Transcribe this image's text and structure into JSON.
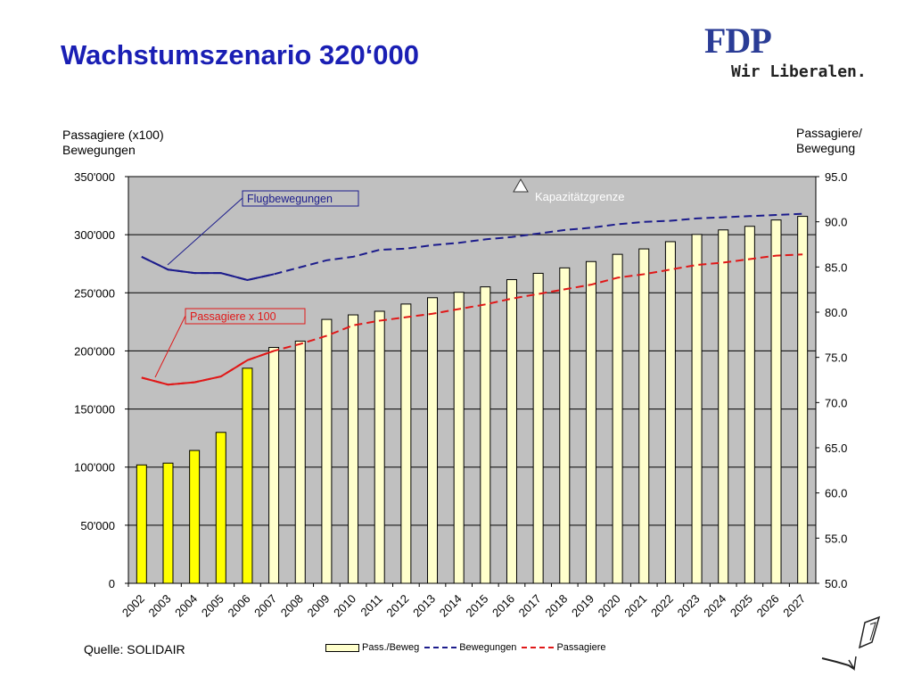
{
  "title": "Wachstumszenario 320‘000",
  "logo": {
    "name": "FDP",
    "tagline": "Wir Liberalen."
  },
  "source": "Quelle: SOLIDAIR",
  "chart_data": {
    "type": "bar",
    "categories": [
      "2002",
      "2003",
      "2004",
      "2005",
      "2006",
      "2007",
      "2008",
      "2009",
      "2010",
      "2011",
      "2012",
      "2013",
      "2014",
      "2015",
      "2016",
      "2017",
      "2018",
      "2019",
      "2020",
      "2021",
      "2022",
      "2023",
      "2024",
      "2025",
      "2026",
      "2027"
    ],
    "ylabel_left": "Passagiere (x100)\nBewegungen",
    "ylabel_right": "Passagiere/\nBewegung",
    "ylim_left": [
      0,
      350000
    ],
    "ylim_right": [
      50.0,
      95.0
    ],
    "yticks_left": [
      "0",
      "50'000",
      "100'000",
      "150'000",
      "200'000",
      "250'000",
      "300'000",
      "350'000"
    ],
    "yticks_right": [
      "50.0",
      "55.0",
      "60.0",
      "65.0",
      "70.0",
      "75.0",
      "80.0",
      "85.0",
      "90.0",
      "95.0"
    ],
    "grid": true,
    "legend_position": "bottom",
    "series": [
      {
        "name": "Pass./Beweg",
        "type": "bar",
        "axis": "right",
        "values": [
          63.1,
          63.3,
          64.7,
          66.7,
          73.8,
          76.1,
          76.8,
          79.2,
          79.7,
          80.1,
          80.9,
          81.6,
          82.2,
          82.8,
          83.6,
          84.3,
          84.9,
          85.6,
          86.4,
          87.0,
          87.8,
          88.6,
          89.1,
          89.5,
          90.2,
          90.6
        ],
        "colors": {
          "highlight": "#ffff00",
          "normal": "#ffffcc",
          "highlight_count": 5
        }
      },
      {
        "name": "Bewegungen",
        "type": "line",
        "axis": "left",
        "color": "#1c1c8c",
        "values": [
          281000,
          270000,
          267000,
          267000,
          261000,
          266000,
          272000,
          278000,
          281000,
          287000,
          288000,
          291000,
          293000,
          296000,
          298000,
          301000,
          304000,
          306000,
          309000,
          311000,
          312000,
          314000,
          315000,
          316000,
          317000,
          318000
        ]
      },
      {
        "name": "Passagiere",
        "type": "line",
        "axis": "left",
        "color": "#e01818",
        "values": [
          177000,
          171000,
          173000,
          178000,
          192000,
          200000,
          206000,
          213000,
          222000,
          226000,
          229000,
          232000,
          236000,
          240000,
          245000,
          249000,
          253000,
          257000,
          263000,
          266000,
          270000,
          274000,
          276000,
          279000,
          282000,
          283000
        ]
      }
    ],
    "annotations": {
      "bewegungen_label": "Flugbewegungen",
      "passagiere_label": "Passagiere x 100",
      "capacity_label": "Kapazitätzgrenze"
    }
  },
  "colors": {
    "plot_bg": "#c0c0c0",
    "title": "#1a1fb4",
    "logo": "#2a3c96"
  }
}
